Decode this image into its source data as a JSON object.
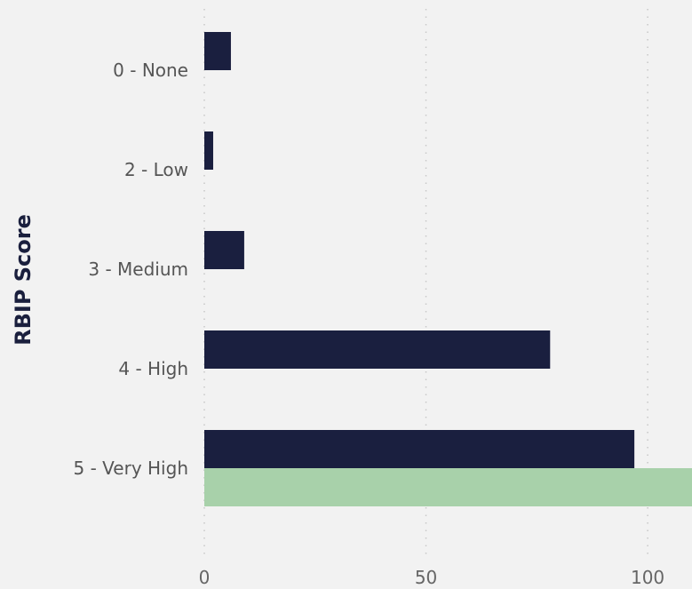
{
  "chart_data": {
    "type": "bar",
    "orientation": "horizontal",
    "ylabel": "RBIP Score",
    "xlabel": "",
    "categories": [
      "0 - None",
      "2 - Low",
      "3 - Medium",
      "4 - High",
      "5 - Very High"
    ],
    "series": [
      {
        "values": [
          6,
          2,
          9,
          78,
          97
        ],
        "color": "#1a1f3f"
      },
      {
        "values": [
          null,
          null,
          null,
          null,
          110
        ],
        "color": "#a8d1aa"
      }
    ],
    "xlim": [
      0,
      110
    ],
    "xticks": [
      "0",
      "50",
      "100"
    ],
    "grid": true,
    "gridStyle": "dotted"
  }
}
